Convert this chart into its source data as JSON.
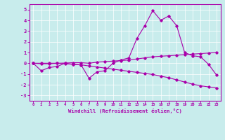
{
  "xlabel": "Windchill (Refroidissement éolien,°C)",
  "background_color": "#c8ecec",
  "line_color": "#aa00aa",
  "x": [
    0,
    1,
    2,
    3,
    4,
    5,
    6,
    7,
    8,
    9,
    10,
    11,
    12,
    13,
    14,
    15,
    16,
    17,
    18,
    19,
    20,
    21,
    22,
    23
  ],
  "line1": [
    0,
    -0.7,
    -0.4,
    -0.3,
    0.0,
    -0.1,
    -0.15,
    -1.4,
    -0.8,
    -0.7,
    0.0,
    0.3,
    0.5,
    2.3,
    3.5,
    4.9,
    4.0,
    4.4,
    3.5,
    1.0,
    0.7,
    0.6,
    -0.1,
    -1.1
  ],
  "line2": [
    0,
    -0.05,
    -0.05,
    0.0,
    0.02,
    0.05,
    0.05,
    0.0,
    0.1,
    0.15,
    0.2,
    0.25,
    0.3,
    0.4,
    0.5,
    0.6,
    0.65,
    0.7,
    0.75,
    0.8,
    0.85,
    0.9,
    0.95,
    1.0
  ],
  "line3": [
    0,
    0.0,
    0.0,
    0.0,
    -0.05,
    -0.1,
    -0.15,
    -0.25,
    -0.35,
    -0.45,
    -0.55,
    -0.65,
    -0.75,
    -0.85,
    -0.95,
    -1.05,
    -1.2,
    -1.35,
    -1.55,
    -1.75,
    -1.95,
    -2.1,
    -2.2,
    -2.3
  ],
  "xlim": [
    -0.5,
    23.5
  ],
  "ylim": [
    -3.5,
    5.5
  ],
  "yticks": [
    -3,
    -2,
    -1,
    0,
    1,
    2,
    3,
    4,
    5
  ],
  "xticks": [
    0,
    1,
    2,
    3,
    4,
    5,
    6,
    7,
    8,
    9,
    10,
    11,
    12,
    13,
    14,
    15,
    16,
    17,
    18,
    19,
    20,
    21,
    22,
    23
  ],
  "xtick_labels": [
    "0",
    "1",
    "2",
    "3",
    "4",
    "5",
    "6",
    "7",
    "8",
    "9",
    "10",
    "11",
    "12",
    "13",
    "14",
    "15",
    "16",
    "17",
    "18",
    "19",
    "20",
    "21",
    "22",
    "23"
  ]
}
